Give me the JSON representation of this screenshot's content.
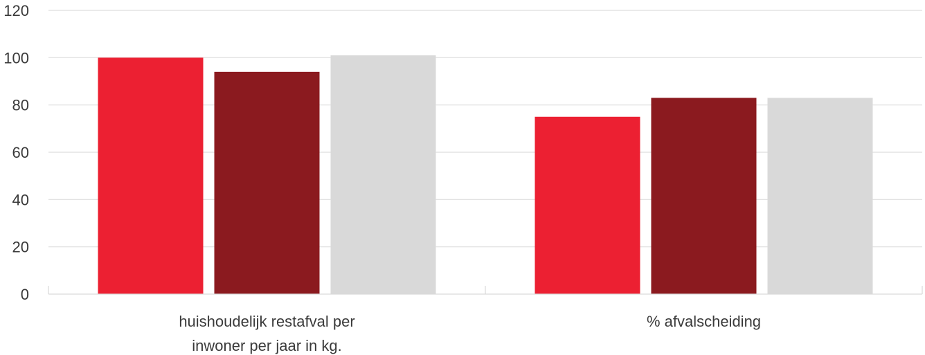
{
  "chart_data": {
    "type": "bar",
    "categories": [
      [
        "huishoudelijk restafval per",
        "inwoner per jaar in kg."
      ],
      [
        "% afvalscheiding"
      ]
    ],
    "series": [
      {
        "values": [
          100,
          75
        ],
        "color": "#ec2032"
      },
      {
        "values": [
          94,
          83
        ],
        "color": "#8b1a1f"
      },
      {
        "values": [
          101,
          83
        ],
        "color": "#d9d9d9"
      }
    ],
    "ylim": [
      0,
      120
    ],
    "yticks": [
      0,
      20,
      40,
      60,
      80,
      100,
      120
    ],
    "grid": true,
    "legend": "none"
  }
}
